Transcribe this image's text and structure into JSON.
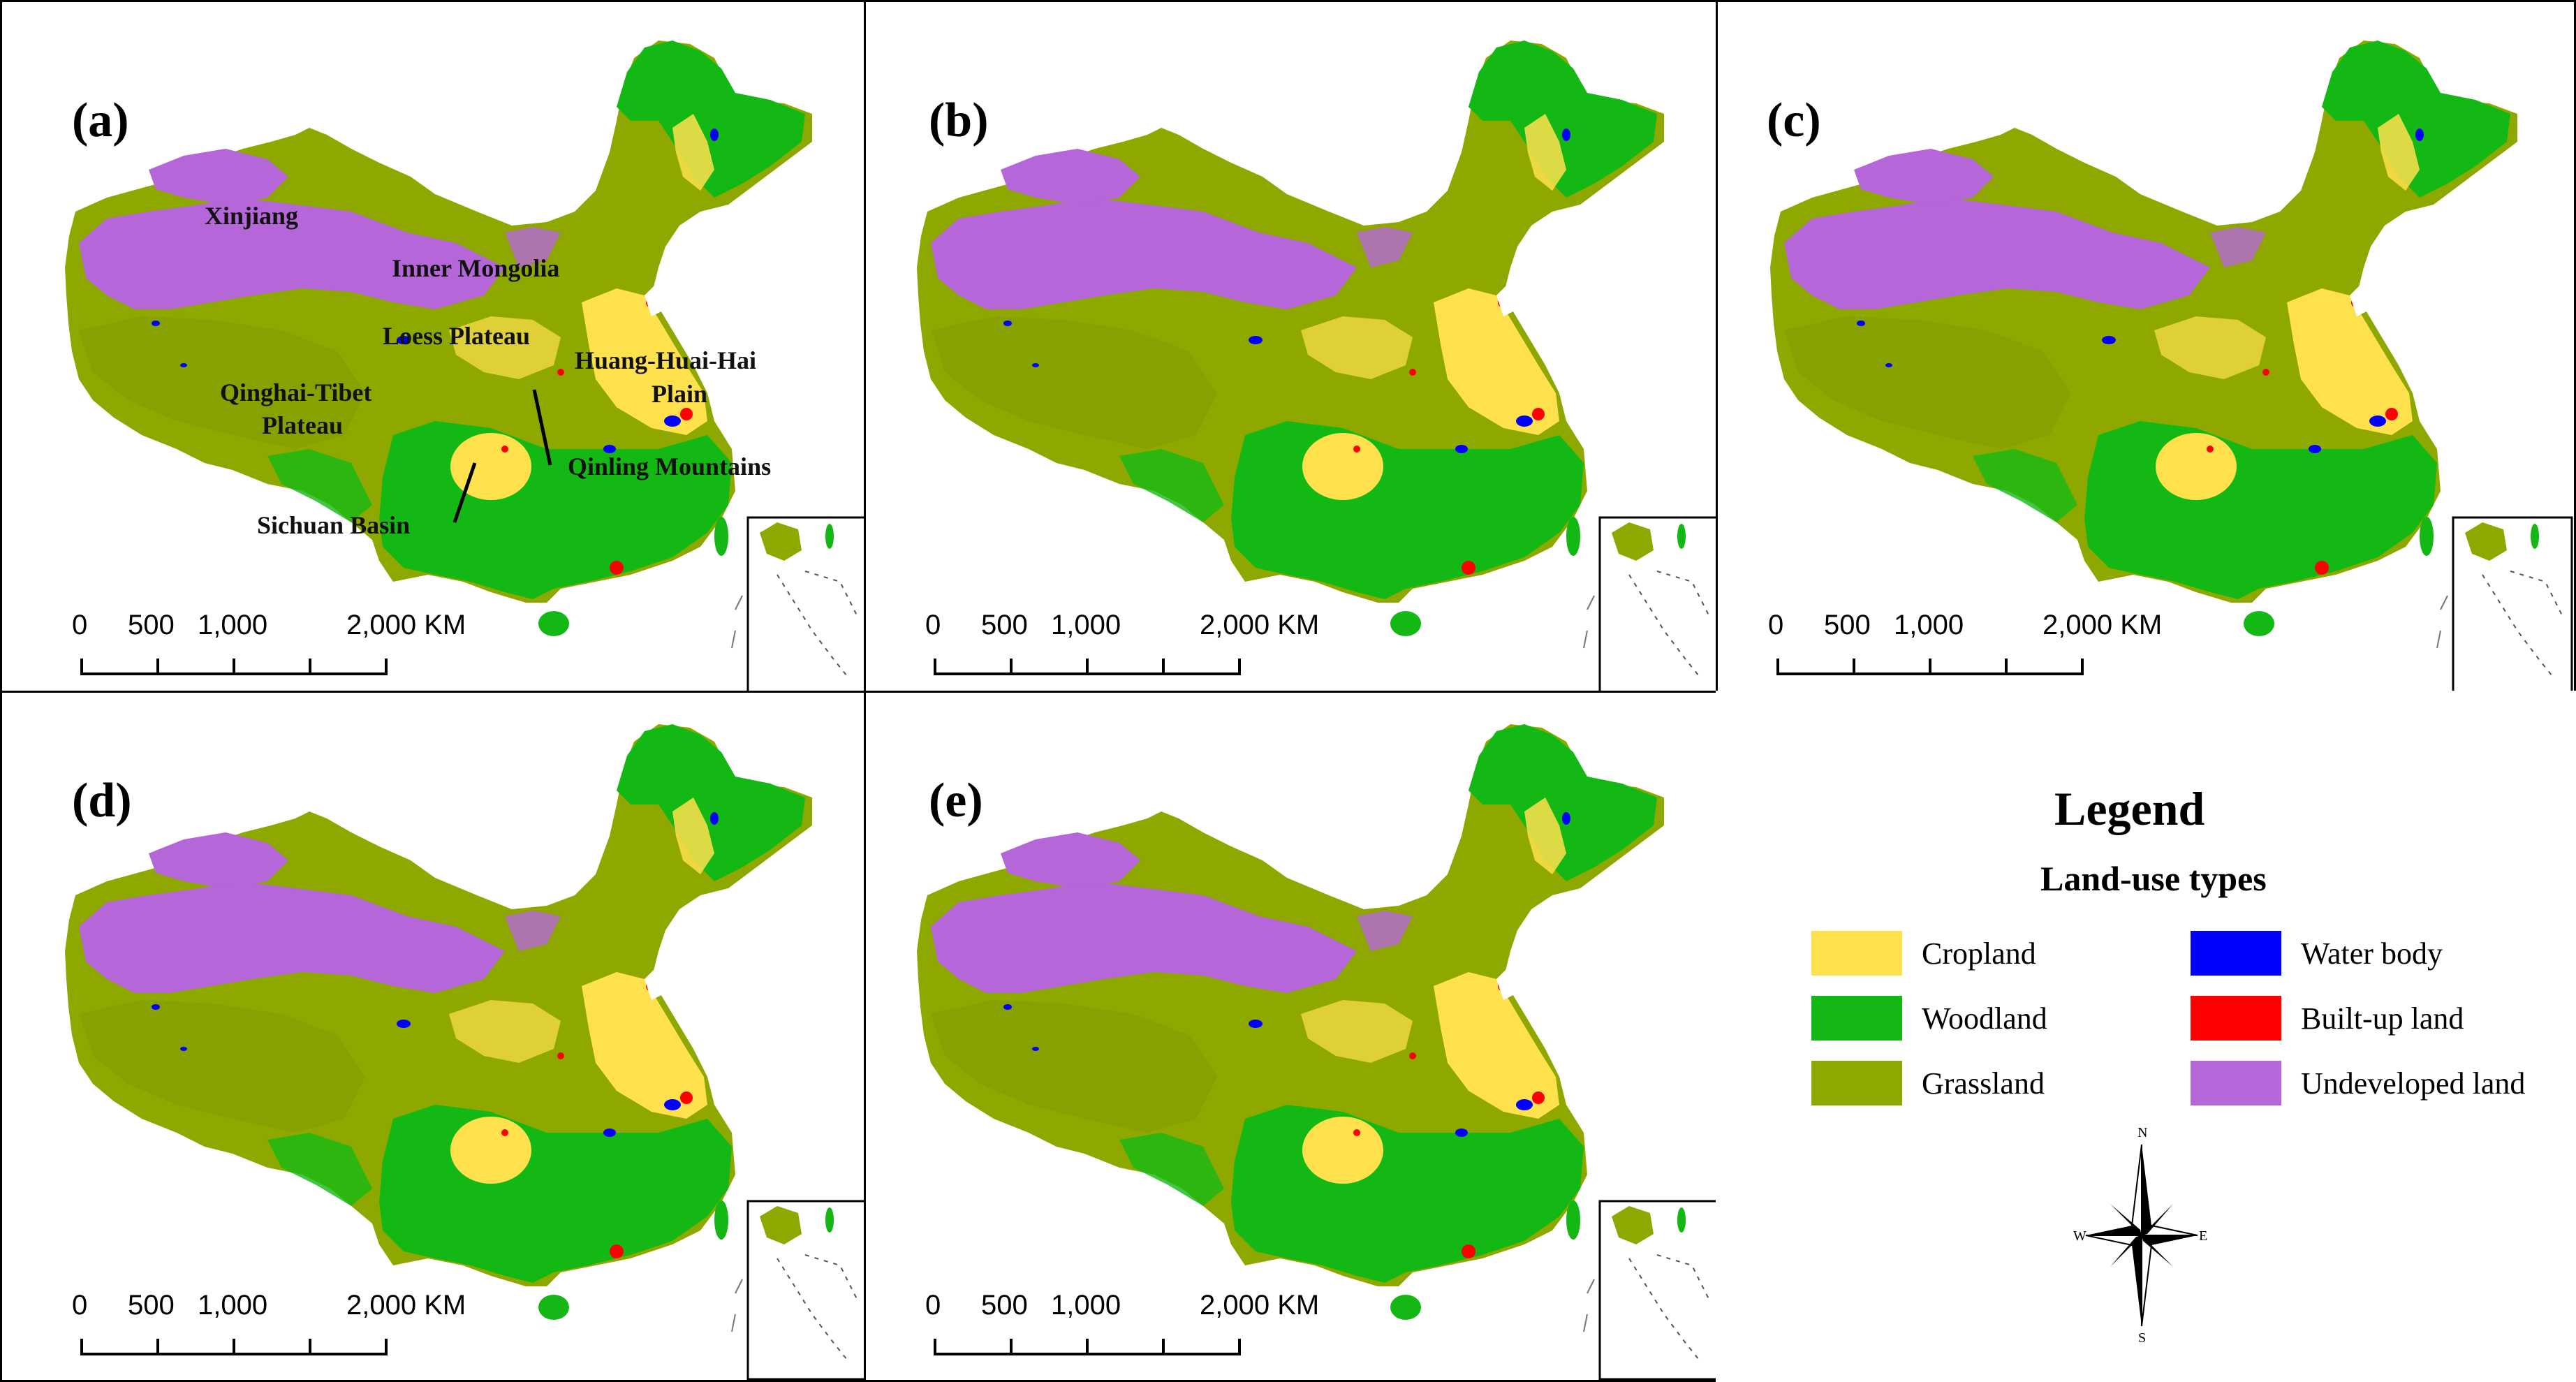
{
  "panels": [
    {
      "label": "(a)",
      "place_names": [
        "Xinjiang",
        "Inner Mongolia",
        "Loess Plateau",
        "Huang-Huai-Hai",
        "Plain",
        "Qinghai-Tibet",
        "Plateau",
        "Qinling Mountains",
        "Sichuan Basin"
      ]
    },
    {
      "label": "(b)"
    },
    {
      "label": "(c)"
    },
    {
      "label": "(d)"
    },
    {
      "label": "(e)"
    }
  ],
  "scale_bar": {
    "ticks": [
      "0",
      "500",
      "1,000",
      "2,000 KM"
    ]
  },
  "legend": {
    "title": "Legend",
    "subtitle": "Land-use types",
    "items": [
      {
        "label": "Cropland",
        "color": "#FFE14D"
      },
      {
        "label": "Woodland",
        "color": "#14B814"
      },
      {
        "label": "Grassland",
        "color": "#8FA800"
      },
      {
        "label": "Water body",
        "color": "#0000FF"
      },
      {
        "label": "Built-up land",
        "color": "#FF0000"
      },
      {
        "label": "Undeveloped land",
        "color": "#B566D8"
      }
    ]
  },
  "compass": {
    "n": "N",
    "s": "S",
    "e": "E",
    "w": "W"
  },
  "colors": {
    "cropland": "#FFE14D",
    "woodland": "#14B814",
    "grassland": "#8FA800",
    "water": "#0000FF",
    "builtup": "#FF0000",
    "undeveloped": "#B566D8"
  }
}
